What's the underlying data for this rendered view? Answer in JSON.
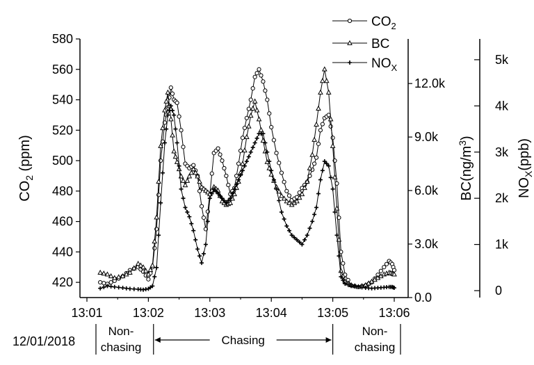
{
  "chart_data": {
    "type": "line",
    "x_unit": "time",
    "xlim": [
      "13:01:00",
      "13:06:00"
    ],
    "x_ticks": [
      "13:01",
      "13:02",
      "13:03",
      "13:04",
      "13:05",
      "13:06"
    ],
    "date_label": "12/01/2018",
    "phases": [
      {
        "label": "Non-\nchasing",
        "start": "13:01:00",
        "end": "13:02:05"
      },
      {
        "label": "Chasing",
        "start": "13:02:05",
        "end": "13:05:00"
      },
      {
        "label": "Non-\nchasing",
        "start": "13:05:00",
        "end": "13:06:00"
      }
    ],
    "axes": {
      "left": {
        "label": "CO2 (ppm)",
        "ylim": [
          410,
          580
        ],
        "ticks": [
          420,
          440,
          460,
          480,
          500,
          520,
          540,
          560,
          580
        ]
      },
      "right1": {
        "label": "BC(ng/m3)",
        "ylim": [
          0,
          14500
        ],
        "ticks": [
          0,
          3000,
          6000,
          9000,
          12000
        ],
        "tick_labels": [
          "0.0",
          "3.0k",
          "6.0k",
          "9.0k",
          "12.0k"
        ]
      },
      "right2": {
        "label": "NOX(ppb)",
        "ylim": [
          -150,
          5450
        ],
        "ticks": [
          0,
          1000,
          2000,
          3000,
          4000,
          5000
        ],
        "tick_labels": [
          "0",
          "1k",
          "2k",
          "3k",
          "4k",
          "5k"
        ]
      }
    },
    "legend": {
      "position": "top-right",
      "entries": [
        "CO2",
        "BC",
        "NOX"
      ]
    },
    "series": [
      {
        "name": "CO2",
        "axis": "left",
        "marker": "circle",
        "x": [
          "13:01:13",
          "13:01:20",
          "13:01:27",
          "13:01:35",
          "13:01:42",
          "13:01:50",
          "13:01:55",
          "13:02:00",
          "13:02:04",
          "13:02:08",
          "13:02:12",
          "13:02:16",
          "13:02:19",
          "13:02:22",
          "13:02:25",
          "13:02:28",
          "13:02:32",
          "13:02:36",
          "13:02:40",
          "13:02:44",
          "13:02:48",
          "13:02:52",
          "13:02:56",
          "13:03:00",
          "13:03:04",
          "13:03:08",
          "13:03:12",
          "13:03:16",
          "13:03:20",
          "13:03:24",
          "13:03:28",
          "13:03:32",
          "13:03:36",
          "13:03:40",
          "13:03:44",
          "13:03:48",
          "13:03:52",
          "13:03:56",
          "13:04:00",
          "13:04:05",
          "13:04:10",
          "13:04:15",
          "13:04:20",
          "13:04:25",
          "13:04:30",
          "13:04:35",
          "13:04:40",
          "13:04:44",
          "13:04:48",
          "13:04:52",
          "13:04:56",
          "13:05:00",
          "13:05:04",
          "13:05:08",
          "13:05:12",
          "13:05:18",
          "13:05:25",
          "13:05:32",
          "13:05:38",
          "13:05:44",
          "13:05:50",
          "13:05:55",
          "13:05:58",
          "13:06:00"
        ],
        "values": [
          420,
          419,
          421,
          424,
          428,
          430,
          427,
          422,
          430,
          455,
          500,
          525,
          535,
          548,
          540,
          538,
          520,
          498,
          495,
          497,
          490,
          470,
          455,
          478,
          505,
          508,
          500,
          490,
          478,
          482,
          498,
          515,
          528,
          540,
          555,
          560,
          552,
          540,
          522,
          505,
          492,
          480,
          474,
          476,
          482,
          486,
          494,
          502,
          520,
          528,
          530,
          515,
          485,
          440,
          425,
          418,
          417,
          418,
          420,
          425,
          430,
          434,
          432,
          428
        ]
      },
      {
        "name": "BC",
        "axis": "right1",
        "marker": "triangle",
        "x": [
          "13:01:13",
          "13:01:20",
          "13:01:27",
          "13:01:35",
          "13:01:42",
          "13:01:50",
          "13:01:55",
          "13:02:00",
          "13:02:04",
          "13:02:08",
          "13:02:12",
          "13:02:16",
          "13:02:19",
          "13:02:22",
          "13:02:25",
          "13:02:28",
          "13:02:32",
          "13:02:36",
          "13:02:40",
          "13:02:44",
          "13:02:48",
          "13:02:52",
          "13:02:56",
          "13:03:00",
          "13:03:04",
          "13:03:08",
          "13:03:12",
          "13:03:16",
          "13:03:20",
          "13:03:24",
          "13:03:28",
          "13:03:32",
          "13:03:36",
          "13:03:40",
          "13:03:44",
          "13:03:48",
          "13:03:52",
          "13:03:56",
          "13:04:00",
          "13:04:05",
          "13:04:10",
          "13:04:15",
          "13:04:20",
          "13:04:25",
          "13:04:30",
          "13:04:35",
          "13:04:40",
          "13:04:44",
          "13:04:48",
          "13:04:52",
          "13:04:56",
          "13:05:00",
          "13:05:04",
          "13:05:08",
          "13:05:12",
          "13:05:18",
          "13:05:25",
          "13:05:32",
          "13:05:38",
          "13:05:44",
          "13:05:50",
          "13:05:55",
          "13:05:58",
          "13:06:00"
        ],
        "values": [
          1400,
          1300,
          1100,
          1200,
          1400,
          1900,
          1700,
          1300,
          1800,
          4500,
          8500,
          10500,
          11500,
          10000,
          8200,
          7600,
          6800,
          6300,
          6800,
          7200,
          6800,
          6200,
          6000,
          5800,
          6200,
          6000,
          5400,
          5200,
          5300,
          5800,
          6500,
          7500,
          9000,
          10200,
          11000,
          10000,
          8800,
          7600,
          6900,
          6200,
          5700,
          5400,
          5200,
          5400,
          5800,
          6500,
          8000,
          9700,
          11500,
          12800,
          11500,
          8500,
          5000,
          1500,
          900,
          700,
          600,
          700,
          900,
          1100,
          1300,
          1400,
          1350,
          1300
        ]
      },
      {
        "name": "NOX",
        "axis": "right2",
        "marker": "plus",
        "x": [
          "13:01:13",
          "13:01:20",
          "13:01:27",
          "13:01:35",
          "13:01:42",
          "13:01:50",
          "13:01:55",
          "13:02:00",
          "13:02:04",
          "13:02:08",
          "13:02:12",
          "13:02:16",
          "13:02:19",
          "13:02:22",
          "13:02:25",
          "13:02:28",
          "13:02:32",
          "13:02:36",
          "13:02:40",
          "13:02:44",
          "13:02:48",
          "13:02:52",
          "13:02:56",
          "13:03:00",
          "13:03:04",
          "13:03:08",
          "13:03:12",
          "13:03:16",
          "13:03:20",
          "13:03:24",
          "13:03:28",
          "13:03:32",
          "13:03:36",
          "13:03:40",
          "13:03:44",
          "13:03:48",
          "13:03:52",
          "13:03:56",
          "13:04:00",
          "13:04:05",
          "13:04:10",
          "13:04:15",
          "13:04:20",
          "13:04:25",
          "13:04:30",
          "13:04:35",
          "13:04:40",
          "13:04:44",
          "13:04:48",
          "13:04:52",
          "13:04:56",
          "13:05:00",
          "13:05:04",
          "13:05:08",
          "13:05:12",
          "13:05:18",
          "13:05:25",
          "13:05:32",
          "13:05:38",
          "13:05:44",
          "13:05:50",
          "13:05:55",
          "13:05:58",
          "13:06:00"
        ],
        "values": [
          50,
          100,
          80,
          60,
          40,
          30,
          20,
          40,
          100,
          500,
          1900,
          3200,
          3800,
          4000,
          3800,
          3200,
          2200,
          1800,
          1600,
          1300,
          900,
          600,
          1000,
          2000,
          2200,
          2100,
          2000,
          1900,
          2000,
          2200,
          2400,
          2600,
          2800,
          3000,
          3200,
          3400,
          3400,
          3000,
          2600,
          2200,
          1700,
          1400,
          1200,
          1100,
          1000,
          1200,
          1500,
          1800,
          2400,
          2800,
          2700,
          2200,
          1200,
          300,
          150,
          100,
          80,
          60,
          50,
          60,
          70,
          80,
          80,
          60
        ]
      }
    ]
  }
}
